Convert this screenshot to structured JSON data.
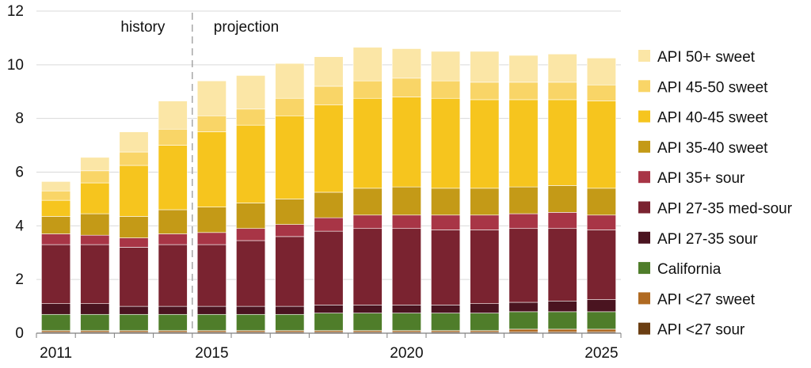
{
  "chart_data": {
    "type": "bar",
    "stacked": true,
    "title": "",
    "xlabel": "",
    "ylabel": "",
    "ylim": [
      0,
      12
    ],
    "yticks": [
      0,
      2,
      4,
      6,
      8,
      10,
      12
    ],
    "grid": true,
    "legend_position": "right",
    "categories": [
      "2011",
      "2012",
      "2013",
      "2014",
      "2015",
      "2016",
      "2017",
      "2018",
      "2019",
      "2020",
      "2021",
      "2022",
      "2023",
      "2024",
      "2025"
    ],
    "x_tick_labels": [
      {
        "category": "2011",
        "text": "2011"
      },
      {
        "category": "2015",
        "text": "2015"
      },
      {
        "category": "2020",
        "text": "2020"
      },
      {
        "category": "2025",
        "text": "2025"
      }
    ],
    "annotations": {
      "history": "history",
      "projection": "projection",
      "divider_between": [
        "2014",
        "2015"
      ]
    },
    "series": [
      {
        "name": "API <27 sour",
        "color": "#6b3e12",
        "values": [
          0.05,
          0.05,
          0.05,
          0.05,
          0.05,
          0.05,
          0.05,
          0.05,
          0.05,
          0.05,
          0.05,
          0.05,
          0.05,
          0.05,
          0.05
        ]
      },
      {
        "name": "API <27 sweet",
        "color": "#b06a22",
        "values": [
          0.05,
          0.05,
          0.05,
          0.05,
          0.05,
          0.05,
          0.05,
          0.05,
          0.05,
          0.05,
          0.05,
          0.05,
          0.1,
          0.1,
          0.1
        ]
      },
      {
        "name": "California",
        "color": "#4f7d2a",
        "values": [
          0.6,
          0.6,
          0.6,
          0.6,
          0.6,
          0.6,
          0.6,
          0.65,
          0.65,
          0.65,
          0.65,
          0.65,
          0.65,
          0.65,
          0.65
        ]
      },
      {
        "name": "API 27-35 sour",
        "color": "#4a1420",
        "values": [
          0.4,
          0.4,
          0.3,
          0.3,
          0.3,
          0.3,
          0.3,
          0.3,
          0.3,
          0.3,
          0.3,
          0.35,
          0.35,
          0.4,
          0.45
        ]
      },
      {
        "name": "API 27-35 med-sour",
        "color": "#7a2330",
        "values": [
          2.2,
          2.2,
          2.2,
          2.3,
          2.3,
          2.45,
          2.6,
          2.75,
          2.85,
          2.85,
          2.8,
          2.75,
          2.75,
          2.7,
          2.6
        ]
      },
      {
        "name": "API 35+ sour",
        "color": "#a83546",
        "values": [
          0.4,
          0.35,
          0.35,
          0.4,
          0.45,
          0.45,
          0.45,
          0.5,
          0.5,
          0.5,
          0.55,
          0.55,
          0.55,
          0.6,
          0.55
        ]
      },
      {
        "name": "API 35-40 sweet",
        "color": "#c49a17",
        "values": [
          0.65,
          0.8,
          0.8,
          0.9,
          0.95,
          0.95,
          0.95,
          0.95,
          1.0,
          1.05,
          1.0,
          1.0,
          1.0,
          1.0,
          1.0
        ]
      },
      {
        "name": "API 40-45 sweet",
        "color": "#f6c51e",
        "values": [
          0.6,
          1.15,
          1.9,
          2.4,
          2.8,
          2.9,
          3.1,
          3.25,
          3.35,
          3.35,
          3.35,
          3.3,
          3.25,
          3.2,
          3.25
        ]
      },
      {
        "name": "API 45-50 sweet",
        "color": "#f9d567",
        "values": [
          0.35,
          0.45,
          0.5,
          0.6,
          0.6,
          0.6,
          0.65,
          0.7,
          0.65,
          0.7,
          0.65,
          0.65,
          0.65,
          0.65,
          0.6
        ]
      },
      {
        "name": "API 50+ sweet",
        "color": "#fbe6a6",
        "values": [
          0.35,
          0.5,
          0.75,
          1.05,
          1.3,
          1.25,
          1.3,
          1.1,
          1.25,
          1.1,
          1.1,
          1.15,
          1.0,
          1.05,
          1.0
        ]
      }
    ]
  }
}
